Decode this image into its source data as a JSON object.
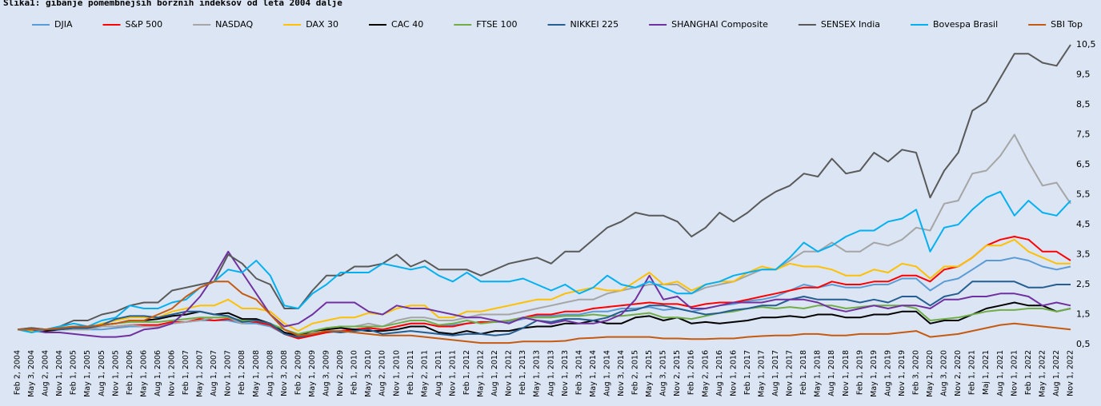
{
  "chart_data": {
    "type": "line",
    "title": "Slika1: gibanje pomembnejših borznih indeksov od leta 2004 dalje",
    "categories": [
      "Feb 2, 2004",
      "May 3, 2004",
      "Aug 2, 2004",
      "Nov 1, 2004",
      "Feb 1, 2005",
      "May 1, 2005",
      "Aug 1, 2005",
      "Nov 1, 2005",
      "Feb 1, 2006",
      "May 1, 2006",
      "Aug 1, 2006",
      "Nov 1, 2006",
      "Feb 1, 2007",
      "May 1, 2007",
      "Aug 1, 2007",
      "Nov 1, 2007",
      "Feb 1, 2008",
      "May 1, 2008",
      "Aug 1, 2008",
      "Nov 3, 2008",
      "Feb 2, 2009",
      "May 1, 2009",
      "Aug 3, 2009",
      "Nov 2, 2009",
      "Feb 1, 2010",
      "May 3, 2010",
      "Aug 2, 2010",
      "Nov 1, 2010",
      "Feb 1, 2011",
      "May 2, 2011",
      "Aug 1, 2011",
      "Nov 1, 2011",
      "Feb 1, 2012",
      "May 1, 2012",
      "Aug 1, 2012",
      "Nov 1, 2012",
      "Feb 1, 2013",
      "May 1, 2013",
      "Aug 1, 2013",
      "Nov 1, 2013",
      "Feb 3, 2014",
      "May 1, 2014",
      "Aug 1, 2014",
      "Nov 3, 2014",
      "Feb 2, 2015",
      "May 1, 2015",
      "Aug 3, 2015",
      "Nov 2, 2015",
      "Feb 1, 2016",
      "May 2, 2016",
      "Aug 1, 2016",
      "Nov 1, 2016",
      "Feb 1, 2017",
      "May 1, 2017",
      "Aug 1, 2017",
      "Nov 1, 2017",
      "Feb 1, 2018",
      "May 1, 2018",
      "Aug 1, 2018",
      "Nov 1, 2018",
      "Feb 1, 2019",
      "May 1, 2019",
      "Aug 1, 2019",
      "Nov 1, 2019",
      "Feb 3, 2020",
      "May 1, 2020",
      "Aug 3, 2020",
      "Nov 2, 2020",
      "Feb 1, 2021",
      "Maj 1, 2021",
      "Aug 1, 2021",
      "Nov 1, 2021",
      "Feb 1, 2022",
      "May 1, 2022",
      "Aug 1, 2022",
      "Nov 1, 2022"
    ],
    "ylim": [
      0.5,
      10.5
    ],
    "yticks": [
      {
        "value": 0.5,
        "label": "0,5"
      },
      {
        "value": 1.5,
        "label": "1,5"
      },
      {
        "value": 2.5,
        "label": "2,5"
      },
      {
        "value": 3.5,
        "label": "3,5"
      },
      {
        "value": 4.5,
        "label": "4,5"
      },
      {
        "value": 5.5,
        "label": "5,5"
      },
      {
        "value": 6.5,
        "label": "6,5"
      },
      {
        "value": 7.5,
        "label": "7,5"
      },
      {
        "value": 8.5,
        "label": "8,5"
      },
      {
        "value": 9.5,
        "label": "9,5"
      },
      {
        "value": 10.5,
        "label": "10,5"
      }
    ],
    "legend": "top",
    "series": [
      {
        "name": "DJIA",
        "color": "#5b9bd5",
        "values": [
          1.0,
          1.0,
          0.95,
          1.0,
          1.0,
          1.0,
          1.0,
          1.05,
          1.1,
          1.1,
          1.1,
          1.2,
          1.25,
          1.3,
          1.3,
          1.3,
          1.2,
          1.2,
          1.1,
          0.85,
          0.7,
          0.8,
          0.9,
          0.95,
          1.0,
          1.05,
          1.0,
          1.1,
          1.2,
          1.2,
          1.1,
          1.15,
          1.2,
          1.25,
          1.25,
          1.25,
          1.35,
          1.45,
          1.45,
          1.5,
          1.5,
          1.6,
          1.6,
          1.7,
          1.7,
          1.75,
          1.65,
          1.7,
          1.6,
          1.7,
          1.8,
          1.85,
          1.95,
          2.0,
          2.1,
          2.3,
          2.5,
          2.4,
          2.5,
          2.4,
          2.4,
          2.5,
          2.5,
          2.7,
          2.7,
          2.3,
          2.6,
          2.7,
          3.0,
          3.3,
          3.3,
          3.4,
          3.3,
          3.1,
          3.0,
          3.1
        ]
      },
      {
        "name": "S&P 500",
        "color": "#ff0000",
        "values": [
          1.0,
          1.0,
          1.0,
          1.05,
          1.05,
          1.05,
          1.1,
          1.1,
          1.15,
          1.15,
          1.15,
          1.25,
          1.25,
          1.35,
          1.3,
          1.35,
          1.25,
          1.25,
          1.15,
          0.85,
          0.7,
          0.8,
          0.9,
          0.95,
          1.0,
          1.05,
          1.0,
          1.1,
          1.2,
          1.2,
          1.1,
          1.1,
          1.2,
          1.25,
          1.25,
          1.3,
          1.4,
          1.5,
          1.5,
          1.6,
          1.6,
          1.7,
          1.75,
          1.8,
          1.85,
          1.9,
          1.85,
          1.85,
          1.75,
          1.85,
          1.9,
          1.9,
          2.0,
          2.1,
          2.2,
          2.3,
          2.4,
          2.4,
          2.6,
          2.5,
          2.5,
          2.6,
          2.6,
          2.8,
          2.8,
          2.6,
          3.0,
          3.1,
          3.4,
          3.8,
          4.0,
          4.1,
          4.0,
          3.6,
          3.6,
          3.3
        ]
      },
      {
        "name": "NASDAQ",
        "color": "#a5a5a5",
        "values": [
          1.0,
          0.95,
          0.9,
          1.0,
          1.0,
          1.0,
          1.1,
          1.1,
          1.15,
          1.1,
          1.1,
          1.2,
          1.25,
          1.3,
          1.4,
          1.4,
          1.2,
          1.3,
          1.2,
          0.9,
          0.75,
          0.9,
          1.05,
          1.1,
          1.1,
          1.2,
          1.1,
          1.3,
          1.4,
          1.4,
          1.3,
          1.3,
          1.4,
          1.5,
          1.5,
          1.5,
          1.6,
          1.7,
          1.8,
          1.9,
          2.0,
          2.0,
          2.2,
          2.3,
          2.4,
          2.5,
          2.5,
          2.5,
          2.2,
          2.4,
          2.5,
          2.6,
          2.8,
          3.0,
          3.0,
          3.3,
          3.6,
          3.6,
          3.9,
          3.6,
          3.6,
          3.9,
          3.8,
          4.0,
          4.4,
          4.3,
          5.2,
          5.3,
          6.2,
          6.3,
          6.8,
          7.5,
          6.6,
          5.8,
          5.9,
          5.2
        ]
      },
      {
        "name": "DAX 30",
        "color": "#ffc000",
        "values": [
          1.0,
          0.95,
          0.95,
          1.0,
          1.05,
          1.05,
          1.2,
          1.3,
          1.4,
          1.4,
          1.4,
          1.6,
          1.7,
          1.8,
          1.8,
          2.0,
          1.7,
          1.7,
          1.6,
          1.2,
          0.95,
          1.2,
          1.3,
          1.4,
          1.4,
          1.55,
          1.5,
          1.7,
          1.8,
          1.8,
          1.4,
          1.4,
          1.6,
          1.6,
          1.7,
          1.8,
          1.9,
          2.0,
          2.0,
          2.2,
          2.3,
          2.4,
          2.3,
          2.3,
          2.6,
          2.9,
          2.5,
          2.6,
          2.3,
          2.5,
          2.6,
          2.6,
          2.9,
          3.1,
          3.0,
          3.2,
          3.1,
          3.1,
          3.0,
          2.8,
          2.8,
          3.0,
          2.9,
          3.2,
          3.1,
          2.7,
          3.1,
          3.1,
          3.4,
          3.8,
          3.8,
          4.0,
          3.6,
          3.4,
          3.2,
          3.2
        ]
      },
      {
        "name": "CAC 40",
        "color": "#000000",
        "values": [
          1.0,
          1.0,
          0.95,
          1.0,
          1.05,
          1.05,
          1.15,
          1.2,
          1.3,
          1.3,
          1.35,
          1.45,
          1.5,
          1.6,
          1.5,
          1.55,
          1.35,
          1.35,
          1.2,
          0.9,
          0.8,
          0.95,
          1.0,
          1.05,
          1.0,
          0.95,
          0.95,
          1.0,
          1.1,
          1.1,
          0.9,
          0.85,
          0.95,
          0.85,
          0.95,
          0.95,
          1.05,
          1.1,
          1.1,
          1.2,
          1.2,
          1.3,
          1.2,
          1.2,
          1.4,
          1.45,
          1.3,
          1.4,
          1.2,
          1.25,
          1.2,
          1.25,
          1.3,
          1.4,
          1.4,
          1.45,
          1.4,
          1.5,
          1.5,
          1.4,
          1.4,
          1.5,
          1.5,
          1.6,
          1.6,
          1.2,
          1.3,
          1.3,
          1.5,
          1.7,
          1.8,
          1.9,
          1.8,
          1.8,
          1.6,
          1.7
        ]
      },
      {
        "name": "FTSE 100",
        "color": "#70ad47",
        "values": [
          1.0,
          1.0,
          1.0,
          1.05,
          1.1,
          1.1,
          1.15,
          1.2,
          1.25,
          1.25,
          1.25,
          1.3,
          1.35,
          1.4,
          1.4,
          1.4,
          1.3,
          1.3,
          1.2,
          1.0,
          0.85,
          0.95,
          1.05,
          1.1,
          1.1,
          1.1,
          1.1,
          1.2,
          1.3,
          1.3,
          1.15,
          1.2,
          1.3,
          1.2,
          1.25,
          1.3,
          1.4,
          1.4,
          1.4,
          1.45,
          1.45,
          1.5,
          1.45,
          1.45,
          1.5,
          1.55,
          1.4,
          1.4,
          1.35,
          1.45,
          1.55,
          1.6,
          1.7,
          1.75,
          1.7,
          1.75,
          1.7,
          1.8,
          1.8,
          1.7,
          1.75,
          1.8,
          1.8,
          1.8,
          1.7,
          1.3,
          1.35,
          1.4,
          1.5,
          1.6,
          1.65,
          1.65,
          1.7,
          1.7,
          1.6,
          1.7
        ]
      },
      {
        "name": "NIKKEI 225",
        "color": "#255e91",
        "values": [
          1.0,
          1.05,
          1.0,
          1.0,
          1.05,
          1.05,
          1.15,
          1.35,
          1.45,
          1.45,
          1.4,
          1.5,
          1.6,
          1.6,
          1.5,
          1.45,
          1.25,
          1.3,
          1.2,
          0.85,
          0.75,
          0.85,
          0.95,
          0.9,
          0.95,
          1.0,
          0.85,
          0.9,
          0.95,
          0.9,
          0.85,
          0.8,
          0.85,
          0.85,
          0.8,
          0.85,
          1.05,
          1.3,
          1.25,
          1.35,
          1.35,
          1.3,
          1.4,
          1.6,
          1.65,
          1.8,
          1.8,
          1.7,
          1.6,
          1.5,
          1.55,
          1.65,
          1.7,
          1.8,
          1.8,
          2.0,
          2.1,
          2.0,
          2.0,
          2.0,
          1.9,
          2.0,
          1.9,
          2.1,
          2.1,
          1.8,
          2.1,
          2.2,
          2.6,
          2.6,
          2.6,
          2.6,
          2.4,
          2.4,
          2.5,
          2.5
        ]
      },
      {
        "name": "SHANGHAI Composite",
        "color": "#7030a0",
        "values": [
          1.0,
          1.0,
          0.9,
          0.9,
          0.85,
          0.8,
          0.75,
          0.75,
          0.8,
          1.0,
          1.05,
          1.2,
          1.6,
          2.1,
          2.8,
          3.6,
          2.9,
          2.2,
          1.5,
          1.1,
          1.2,
          1.5,
          1.9,
          1.9,
          1.9,
          1.6,
          1.5,
          1.8,
          1.7,
          1.7,
          1.6,
          1.5,
          1.4,
          1.4,
          1.3,
          1.2,
          1.4,
          1.3,
          1.2,
          1.3,
          1.2,
          1.2,
          1.3,
          1.5,
          2.0,
          2.8,
          2.0,
          2.1,
          1.7,
          1.7,
          1.8,
          1.9,
          1.9,
          1.9,
          2.0,
          2.0,
          2.0,
          1.9,
          1.7,
          1.6,
          1.7,
          1.8,
          1.7,
          1.8,
          1.8,
          1.7,
          2.0,
          2.0,
          2.1,
          2.1,
          2.2,
          2.2,
          2.1,
          1.8,
          1.9,
          1.8
        ]
      },
      {
        "name": "SENSEX India",
        "color": "#595959",
        "values": [
          1.0,
          1.05,
          1.0,
          1.1,
          1.3,
          1.3,
          1.5,
          1.6,
          1.8,
          1.9,
          1.9,
          2.3,
          2.4,
          2.5,
          2.6,
          3.5,
          3.2,
          2.7,
          2.5,
          1.7,
          1.7,
          2.3,
          2.8,
          2.8,
          3.1,
          3.1,
          3.2,
          3.5,
          3.1,
          3.3,
          3.0,
          3.0,
          3.0,
          2.8,
          3.0,
          3.2,
          3.3,
          3.4,
          3.2,
          3.6,
          3.6,
          4.0,
          4.4,
          4.6,
          4.9,
          4.8,
          4.8,
          4.6,
          4.1,
          4.4,
          4.9,
          4.6,
          4.9,
          5.3,
          5.6,
          5.8,
          6.2,
          6.1,
          6.7,
          6.2,
          6.3,
          6.9,
          6.6,
          7.0,
          6.9,
          5.4,
          6.3,
          6.9,
          8.3,
          8.6,
          9.4,
          10.2,
          10.2,
          9.9,
          9.8,
          10.5
        ]
      },
      {
        "name": "Bovespa Brasil",
        "color": "#00b0f0",
        "values": [
          1.0,
          0.9,
          1.0,
          1.1,
          1.2,
          1.1,
          1.3,
          1.4,
          1.8,
          1.7,
          1.7,
          1.9,
          2.0,
          2.4,
          2.6,
          3.0,
          2.9,
          3.3,
          2.8,
          1.8,
          1.7,
          2.2,
          2.5,
          2.9,
          2.9,
          2.9,
          3.2,
          3.1,
          3.0,
          3.1,
          2.8,
          2.6,
          2.9,
          2.6,
          2.6,
          2.6,
          2.7,
          2.5,
          2.3,
          2.5,
          2.2,
          2.4,
          2.8,
          2.5,
          2.4,
          2.6,
          2.4,
          2.2,
          2.2,
          2.5,
          2.6,
          2.8,
          2.9,
          3.0,
          3.0,
          3.4,
          3.9,
          3.6,
          3.8,
          4.1,
          4.3,
          4.3,
          4.6,
          4.7,
          5.0,
          3.6,
          4.4,
          4.5,
          5.0,
          5.4,
          5.6,
          4.8,
          5.3,
          4.9,
          4.8,
          5.3
        ]
      },
      {
        "name": "SBI Top",
        "color": "#c55a11",
        "values": [
          1.0,
          1.0,
          1.0,
          1.05,
          1.1,
          1.1,
          1.15,
          1.2,
          1.3,
          1.3,
          1.5,
          1.7,
          2.1,
          2.4,
          2.6,
          2.6,
          2.2,
          2.0,
          1.5,
          1.0,
          0.8,
          0.85,
          0.95,
          0.95,
          0.9,
          0.85,
          0.8,
          0.8,
          0.8,
          0.75,
          0.7,
          0.65,
          0.6,
          0.55,
          0.55,
          0.55,
          0.6,
          0.6,
          0.6,
          0.62,
          0.7,
          0.72,
          0.75,
          0.75,
          0.75,
          0.75,
          0.7,
          0.7,
          0.68,
          0.68,
          0.7,
          0.7,
          0.75,
          0.78,
          0.8,
          0.8,
          0.85,
          0.85,
          0.8,
          0.8,
          0.85,
          0.85,
          0.85,
          0.9,
          0.95,
          0.75,
          0.8,
          0.85,
          0.95,
          1.05,
          1.15,
          1.2,
          1.15,
          1.1,
          1.05,
          1.0
        ]
      }
    ]
  }
}
